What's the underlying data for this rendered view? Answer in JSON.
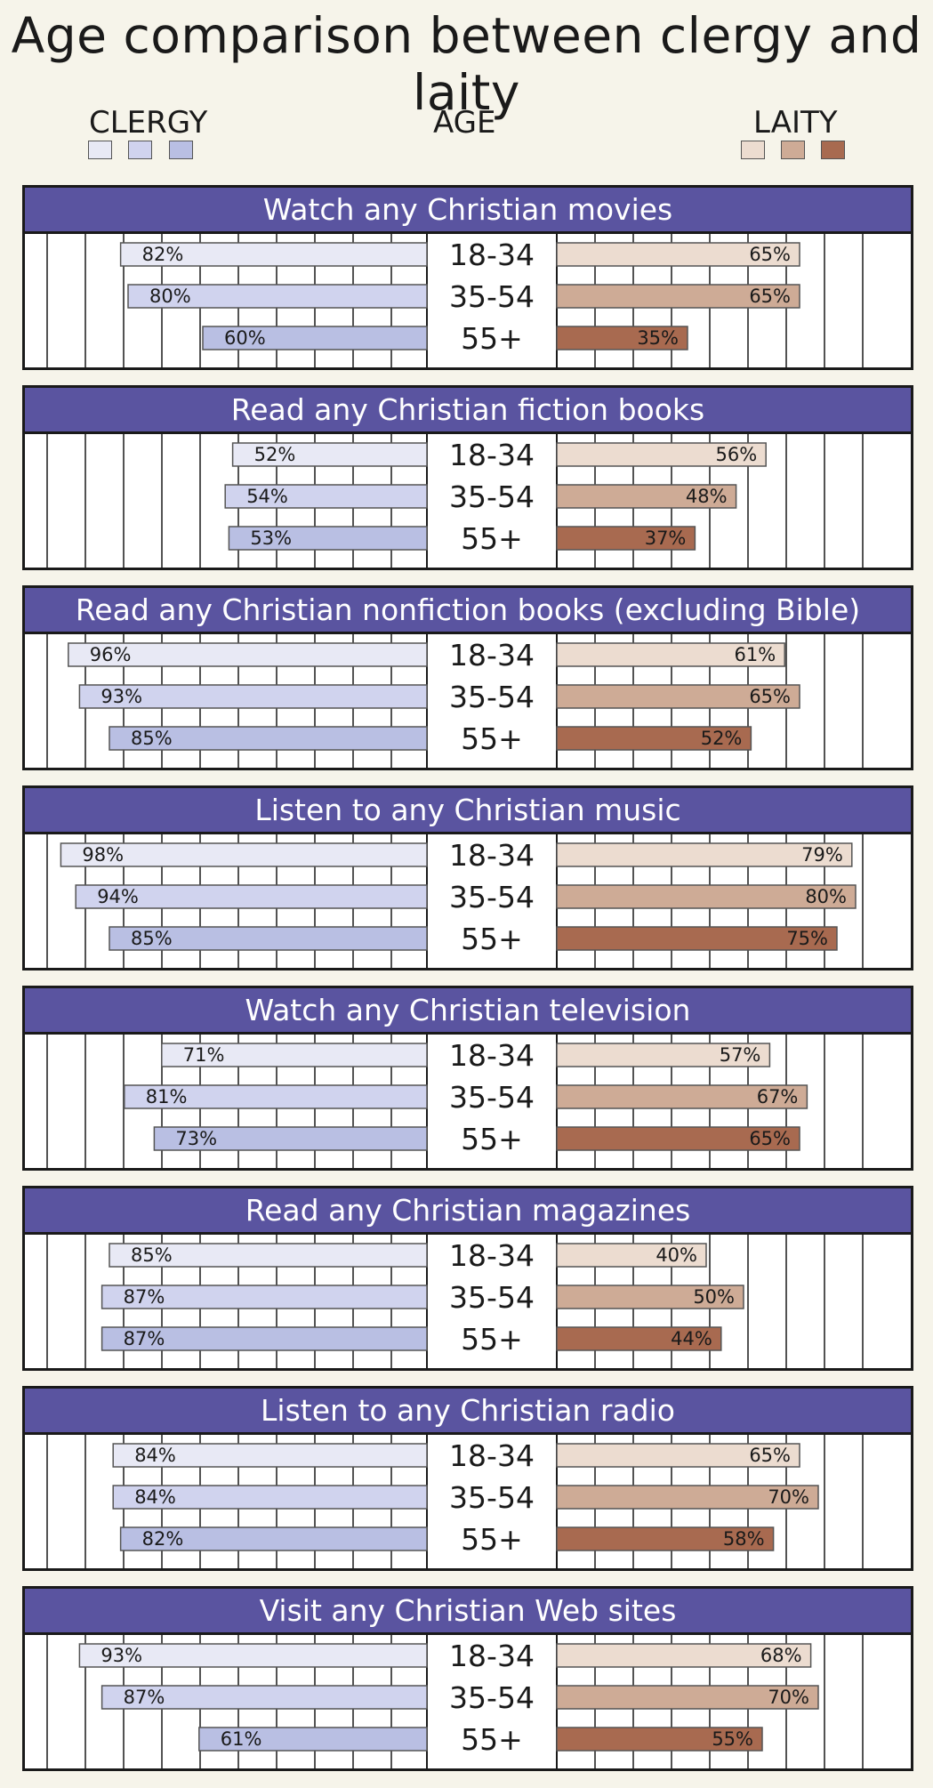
{
  "title": "Age comparison between clergy and laity",
  "legend": {
    "clergy_label": "CLERGY",
    "age_label": "AGE",
    "laity_label": "LAITY",
    "clergy_colors": [
      "#e8e9f5",
      "#d0d3ee",
      "#b9bfe3"
    ],
    "laity_colors": [
      "#ecdcd0",
      "#ceab96",
      "#a86a50"
    ]
  },
  "colors": {
    "header": "#5a54a0"
  },
  "chart_data": {
    "type": "bar",
    "age_groups": [
      "18-34",
      "35-54",
      "55+"
    ],
    "series_groups": [
      "CLERGY",
      "LAITY"
    ],
    "panels": [
      {
        "title": "Watch any Christian movies",
        "clergy": [
          82,
          80,
          60
        ],
        "laity": [
          65,
          65,
          35
        ]
      },
      {
        "title": "Read any Christian fiction books",
        "clergy": [
          52,
          54,
          53
        ],
        "laity": [
          56,
          48,
          37
        ]
      },
      {
        "title": "Read any Christian nonfiction books (excluding Bible)",
        "clergy": [
          96,
          93,
          85
        ],
        "laity": [
          61,
          65,
          52
        ]
      },
      {
        "title": "Listen to any Christian music",
        "clergy": [
          98,
          94,
          85
        ],
        "laity": [
          79,
          80,
          75
        ]
      },
      {
        "title": "Watch any Christian television",
        "clergy": [
          71,
          81,
          73
        ],
        "laity": [
          57,
          67,
          65
        ]
      },
      {
        "title": "Read any Christian magazines",
        "clergy": [
          85,
          87,
          87
        ],
        "laity": [
          40,
          50,
          44
        ]
      },
      {
        "title": "Listen to any Christian radio",
        "clergy": [
          84,
          84,
          82
        ],
        "laity": [
          65,
          70,
          58
        ]
      },
      {
        "title": "Visit any Christian Web sites",
        "clergy": [
          93,
          87,
          61
        ],
        "laity": [
          68,
          70,
          55
        ]
      }
    ]
  }
}
